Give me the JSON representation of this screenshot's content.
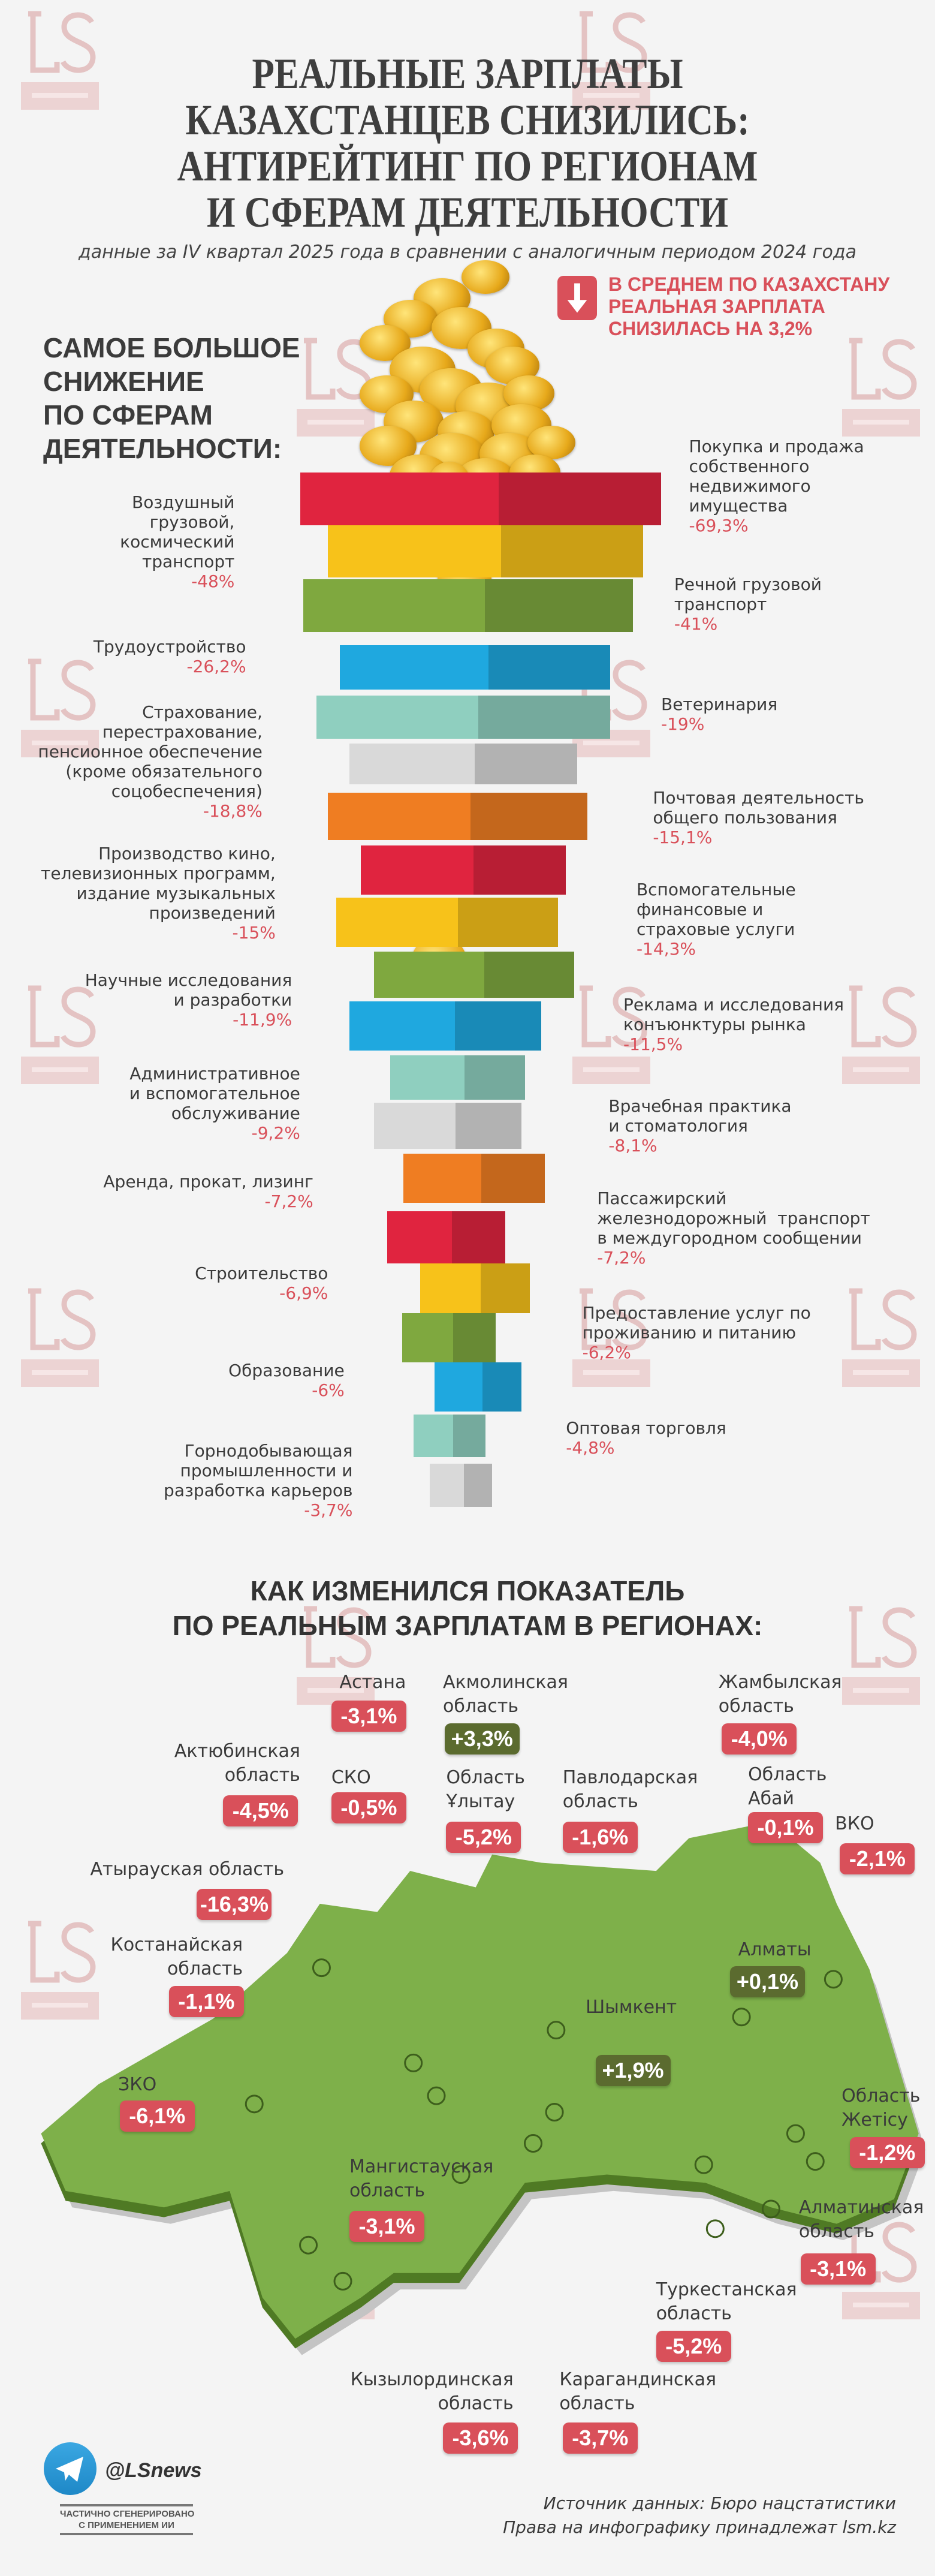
{
  "watermark": {
    "logo": "LS",
    "site": "lsm.kz"
  },
  "header": {
    "title_lines": [
      "РЕАЛЬНЫЕ ЗАРПЛАТЫ",
      "КАЗАХСТАНЦЕВ СНИЗИЛИСЬ:",
      "АНТИРЕЙТИНГ ПО РЕГИОНАМ",
      "И СФЕРАМ ДЕЯТЕЛЬНОСТИ"
    ],
    "subtitle": "данные за IV квартал 2025 года в сравнении с аналогичным периодом 2024 года"
  },
  "callout": {
    "icon": "arrow-down-icon",
    "text": "В СРЕДНЕМ ПО КАЗАХСТАНУ\nРЕАЛЬНАЯ ЗАРПЛАТА\nСНИЗИЛАСЬ НА 3,2%"
  },
  "sectors": {
    "heading": "САМОЕ БОЛЬШОЕ\nСНИЖЕНИЕ\nПО СФЕРАМ\nДЕЯТЕЛЬНОСТИ:",
    "colors": {
      "red": "#e0243f",
      "yellow": "#f7c21a",
      "green": "#7fa83f",
      "blue": "#1fa8df",
      "teal": "#8fcfbf",
      "gray": "#d9d9d9",
      "orange": "#ef7d22",
      "value": "#d9505a"
    },
    "bars": [
      "red",
      "yellow",
      "green",
      "blue",
      "teal",
      "gray",
      "orange",
      "red",
      "yellow",
      "green",
      "blue",
      "teal",
      "gray",
      "orange",
      "red",
      "yellow",
      "green",
      "blue",
      "teal",
      "gray"
    ],
    "items": [
      {
        "label": "Покупка и продажа\nсобственного\nнедвижимого\nимущества",
        "value": "-69,3%"
      },
      {
        "label": "Воздушный\nгрузовой,\nкосмический\nтранспорт",
        "value": "-48%"
      },
      {
        "label": "Речной грузовой\nтранспорт",
        "value": "-41%"
      },
      {
        "label": "Трудоустройство",
        "value": "-26,2%"
      },
      {
        "label": "Ветеринария",
        "value": "-19%"
      },
      {
        "label": "Страхование,\nперестрахование,\nпенсионное обеспечение\n(кроме обязательного\nсоцобеспечения)",
        "value": "-18,8%"
      },
      {
        "label": "Почтовая деятельность\nобщего пользования",
        "value": "-15,1%"
      },
      {
        "label": "Производство кино,\nтелевизионных программ,\nиздание музыкальных\nпроизведений",
        "value": "-15%"
      },
      {
        "label": "Вспомогательные\nфинансовые и\nстраховые услуги",
        "value": "-14,3%"
      },
      {
        "label": "Научные исследования\nи разработки",
        "value": "-11,9%"
      },
      {
        "label": "Реклама и исследования\nконъюнктуры рынка",
        "value": "-11,5%"
      },
      {
        "label": "Административное\nи вспомогательное\nобслуживание",
        "value": "-9,2%"
      },
      {
        "label": "Врачебная практика\nи стоматология",
        "value": "-8,1%"
      },
      {
        "label": "Аренда, прокат, лизинг",
        "value": "-7,2%"
      },
      {
        "label": "Пассажирский\nжелезнодорожный  транспорт\nв междугородном сообщении",
        "value": "-7,2%"
      },
      {
        "label": "Строительство",
        "value": "-6,9%"
      },
      {
        "label": "Предоставление услуг по\nпроживанию и питанию",
        "value": "-6,2%"
      },
      {
        "label": "Образование",
        "value": "-6%"
      },
      {
        "label": "Оптовая торговля",
        "value": "-4,8%"
      },
      {
        "label": "Горнодобывающая\nпромышленности и\nразработка карьеров",
        "value": "-3,7%"
      }
    ]
  },
  "regions": {
    "heading": "КАК ИЗМЕНИЛСЯ ПОКАЗАТЕЛЬ\nПО РЕАЛЬНЫМ ЗАРПЛАТАМ В РЕГИОНАХ:",
    "colors": {
      "negative": "#d9505a",
      "positive": "#5b6b2f",
      "map": "#7eb04a",
      "map_edge": "#4f7a24"
    },
    "items": [
      {
        "name": "Астана",
        "value": "-3,1%"
      },
      {
        "name": "Акмолинская\nобласть",
        "value": "+3,3%"
      },
      {
        "name": "Жамбылская\nобласть",
        "value": "-4,0%"
      },
      {
        "name": "Актюбинская\nобласть",
        "value": "-4,5%"
      },
      {
        "name": "СКО",
        "value": "-0,5%"
      },
      {
        "name": "Область\nҰлытау",
        "value": "-5,2%"
      },
      {
        "name": "Павлодарская\nобласть",
        "value": "-1,6%"
      },
      {
        "name": "Область\nАбай",
        "value": "-0,1%"
      },
      {
        "name": "ВКО",
        "value": "-2,1%"
      },
      {
        "name": "Атырауская область",
        "value": "-16,3%"
      },
      {
        "name": "Костанайская\nобласть",
        "value": "-1,1%"
      },
      {
        "name": "Алматы",
        "value": "+0,1%"
      },
      {
        "name": "Шымкент",
        "value": "+1,9%"
      },
      {
        "name": "ЗКО",
        "value": "-6,1%"
      },
      {
        "name": "Область\nЖетісу",
        "value": "-1,2%"
      },
      {
        "name": "Мангистауская\nобласть",
        "value": "-3,1%"
      },
      {
        "name": "Алматинская\nобласть",
        "value": "-3,1%"
      },
      {
        "name": "Туркестанская\nобласть",
        "value": "-5,2%"
      },
      {
        "name": "Кызылординская\nобласть",
        "value": "-3,6%"
      },
      {
        "name": "Карагандинская\nобласть",
        "value": "-3,7%"
      }
    ]
  },
  "footer": {
    "telegram_icon": "telegram-icon",
    "handle": "@LSnews",
    "ai_note": "ЧАСТИЧНО СГЕНЕРИРОВАНО\nС ПРИМЕНЕНИЕМ ИИ",
    "source": "Источник данных: Бюро нацстатистики\nПрава на инфографику принадлежат lsm.kz"
  }
}
